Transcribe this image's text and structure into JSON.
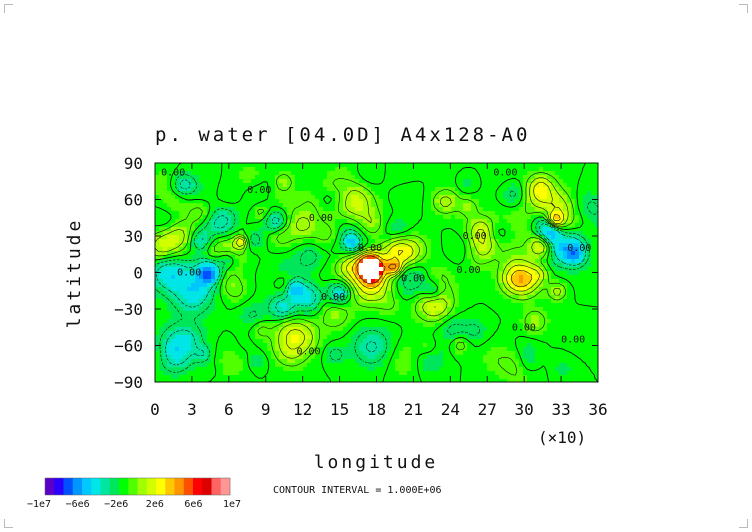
{
  "chart_data": {
    "type": "heatmap",
    "title": "p. water [04.0D]  A4x128-A0",
    "xlabel": "longitude",
    "ylabel": "latitude",
    "x_multiplier": "(×10)",
    "x_ticks": [
      "0",
      "3",
      "6",
      "9",
      "12",
      "15",
      "18",
      "21",
      "24",
      "27",
      "30",
      "33",
      "36"
    ],
    "y_ticks": [
      "90",
      "60",
      "30",
      "0",
      "−30",
      "−60",
      "−90"
    ],
    "xlim": [
      0,
      360
    ],
    "ylim": [
      -90,
      90
    ],
    "contour_interval_text": "CONTOUR INTERVAL = 1.000E+06",
    "contour_labels": [
      "0.00",
      "0.00",
      "0.00",
      "0.00",
      "0.00",
      "0.00",
      "0.00",
      "0.00",
      "0.00",
      "0.00",
      "0.00",
      "0.00",
      "0.00",
      "0.00"
    ],
    "colorbar": {
      "tick_labels": [
        "−1e7",
        "−6e6",
        "−2e6",
        "2e6",
        "6e6",
        "1e7"
      ],
      "range": [
        -10000000,
        10000000
      ],
      "colors": [
        "#5a00c8",
        "#2800ff",
        "#0050ff",
        "#0096ff",
        "#00c8ff",
        "#00e6e6",
        "#00e6a0",
        "#00e65a",
        "#00ff00",
        "#50ff00",
        "#a0ff00",
        "#d2ff00",
        "#ffff00",
        "#ffc800",
        "#ff9600",
        "#ff5000",
        "#ff0000",
        "#dc0000",
        "#ff6464",
        "#ff9696"
      ]
    },
    "grid": false
  }
}
